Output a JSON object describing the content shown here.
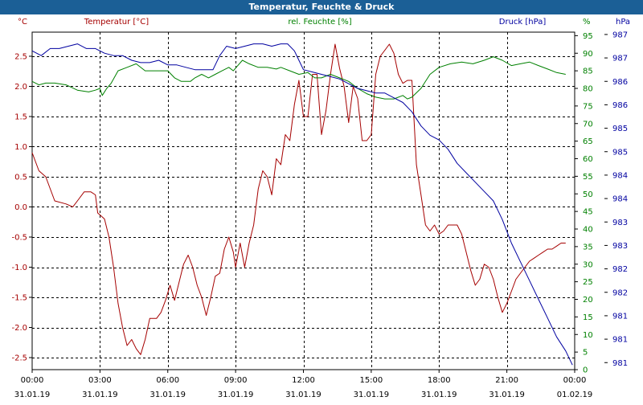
{
  "title": "Temperatur, Feuchte & Druck",
  "colors": {
    "titlebar": "#1b5f96",
    "temperature": "#a50000",
    "humidity": "#008000",
    "pressure": "#0000a0"
  },
  "chart_data": {
    "type": "line",
    "title": "Temperatur, Feuchte & Druck",
    "x": {
      "range_hours": [
        0,
        24
      ],
      "tick_hours": [
        0,
        3,
        6,
        9,
        12,
        15,
        18,
        21,
        24
      ],
      "tick_times": [
        "00:00",
        "03:00",
        "06:00",
        "09:00",
        "12:00",
        "15:00",
        "18:00",
        "21:00",
        "00:00"
      ],
      "tick_dates": [
        "31.01.19",
        "31.01.19",
        "31.01.19",
        "31.01.19",
        "31.01.19",
        "31.01.19",
        "31.01.19",
        "31.01.19",
        "01.02.19"
      ]
    },
    "axes": {
      "left": {
        "label": "Temperatur [°C]",
        "unit": "°C",
        "range": [
          -2.7,
          2.9
        ],
        "ticks": [
          -2.5,
          -2.0,
          -1.5,
          -1.0,
          -0.5,
          0.0,
          0.5,
          1.0,
          1.5,
          2.0,
          2.5
        ],
        "tick_labels": [
          "-2.5",
          "-2.0",
          "-1.5",
          "-1.0",
          "-0.5",
          "0.0",
          "0.5",
          "1.0",
          "1.5",
          "2.0",
          "2.5"
        ]
      },
      "right1": {
        "label": "rel. Feuchte [%]",
        "unit": "%",
        "range": [
          0,
          96
        ],
        "ticks": [
          0,
          5,
          10,
          15,
          20,
          25,
          30,
          35,
          40,
          45,
          50,
          55,
          60,
          65,
          70,
          75,
          80,
          85,
          90,
          95
        ],
        "tick_labels": [
          "0",
          "5",
          "10",
          "15",
          "20",
          "25",
          "30",
          "35",
          "40",
          "45",
          "50",
          "55",
          "60",
          "65",
          "70",
          "75",
          "80",
          "85",
          "90",
          "95"
        ]
      },
      "right2": {
        "label": "Druck [hPa]",
        "unit": "hPa",
        "range": [
          980.6,
          987.8
        ],
        "ticks": [
          980.75,
          981.25,
          981.75,
          982.25,
          982.75,
          983.25,
          983.75,
          984.25,
          984.75,
          985.25,
          985.75,
          986.25,
          986.75,
          987.25,
          987.75
        ],
        "tick_labels": [
          "981",
          "981",
          "981",
          "982",
          "982",
          "983",
          "983",
          "984",
          "984",
          "985",
          "985",
          "986",
          "986",
          "987",
          "987",
          "hPa"
        ]
      }
    },
    "grid": true,
    "series": [
      {
        "name": "Temperatur [°C]",
        "axis": "left",
        "points": [
          [
            0,
            0.9
          ],
          [
            0.3,
            0.6
          ],
          [
            0.6,
            0.5
          ],
          [
            0.8,
            0.3
          ],
          [
            1,
            0.1
          ],
          [
            1.5,
            0.05
          ],
          [
            1.8,
            0
          ],
          [
            2,
            0.1
          ],
          [
            2.3,
            0.25
          ],
          [
            2.6,
            0.25
          ],
          [
            2.8,
            0.2
          ],
          [
            2.9,
            -0.1
          ],
          [
            3.2,
            -0.2
          ],
          [
            3.4,
            -0.5
          ],
          [
            3.6,
            -1.0
          ],
          [
            3.8,
            -1.6
          ],
          [
            4,
            -2.0
          ],
          [
            4.2,
            -2.3
          ],
          [
            4.4,
            -2.2
          ],
          [
            4.6,
            -2.35
          ],
          [
            4.8,
            -2.45
          ],
          [
            5.0,
            -2.2
          ],
          [
            5.2,
            -1.85
          ],
          [
            5.5,
            -1.85
          ],
          [
            5.7,
            -1.75
          ],
          [
            5.9,
            -1.55
          ],
          [
            6.1,
            -1.3
          ],
          [
            6.3,
            -1.55
          ],
          [
            6.5,
            -1.25
          ],
          [
            6.7,
            -0.95
          ],
          [
            6.9,
            -0.8
          ],
          [
            7.1,
            -1.0
          ],
          [
            7.3,
            -1.3
          ],
          [
            7.5,
            -1.5
          ],
          [
            7.7,
            -1.8
          ],
          [
            7.9,
            -1.5
          ],
          [
            8.1,
            -1.15
          ],
          [
            8.3,
            -1.1
          ],
          [
            8.5,
            -0.7
          ],
          [
            8.7,
            -0.5
          ],
          [
            8.9,
            -0.75
          ],
          [
            9.0,
            -1.0
          ],
          [
            9.2,
            -0.6
          ],
          [
            9.4,
            -1.0
          ],
          [
            9.6,
            -0.6
          ],
          [
            9.8,
            -0.3
          ],
          [
            10.0,
            0.3
          ],
          [
            10.2,
            0.6
          ],
          [
            10.4,
            0.5
          ],
          [
            10.6,
            0.2
          ],
          [
            10.8,
            0.8
          ],
          [
            11.0,
            0.7
          ],
          [
            11.2,
            1.2
          ],
          [
            11.4,
            1.1
          ],
          [
            11.6,
            1.7
          ],
          [
            11.8,
            2.1
          ],
          [
            12.0,
            1.5
          ],
          [
            12.2,
            1.5
          ],
          [
            12.4,
            2.2
          ],
          [
            12.6,
            2.2
          ],
          [
            12.8,
            1.2
          ],
          [
            13.0,
            1.6
          ],
          [
            13.2,
            2.2
          ],
          [
            13.4,
            2.7
          ],
          [
            13.6,
            2.3
          ],
          [
            13.8,
            2.0
          ],
          [
            14.0,
            1.4
          ],
          [
            14.2,
            2.0
          ],
          [
            14.4,
            1.8
          ],
          [
            14.6,
            1.1
          ],
          [
            14.8,
            1.1
          ],
          [
            15.0,
            1.2
          ],
          [
            15.2,
            2.2
          ],
          [
            15.4,
            2.5
          ],
          [
            15.6,
            2.6
          ],
          [
            15.8,
            2.7
          ],
          [
            16.0,
            2.55
          ],
          [
            16.2,
            2.2
          ],
          [
            16.4,
            2.05
          ],
          [
            16.6,
            2.1
          ],
          [
            16.8,
            2.1
          ],
          [
            17.0,
            0.7
          ],
          [
            17.2,
            0.2
          ],
          [
            17.4,
            -0.3
          ],
          [
            17.6,
            -0.4
          ],
          [
            17.8,
            -0.3
          ],
          [
            18.0,
            -0.45
          ],
          [
            18.2,
            -0.4
          ],
          [
            18.4,
            -0.3
          ],
          [
            18.6,
            -0.3
          ],
          [
            18.8,
            -0.3
          ],
          [
            19.0,
            -0.45
          ],
          [
            19.2,
            -0.75
          ],
          [
            19.4,
            -1.05
          ],
          [
            19.6,
            -1.3
          ],
          [
            19.8,
            -1.2
          ],
          [
            20.0,
            -0.95
          ],
          [
            20.2,
            -1.0
          ],
          [
            20.4,
            -1.2
          ],
          [
            20.6,
            -1.5
          ],
          [
            20.8,
            -1.75
          ],
          [
            21.0,
            -1.6
          ],
          [
            21.2,
            -1.4
          ],
          [
            21.4,
            -1.2
          ],
          [
            21.6,
            -1.1
          ],
          [
            21.8,
            -1.0
          ],
          [
            22.0,
            -0.9
          ],
          [
            22.2,
            -0.85
          ],
          [
            22.4,
            -0.8
          ],
          [
            22.6,
            -0.75
          ],
          [
            22.8,
            -0.7
          ],
          [
            23.0,
            -0.7
          ],
          [
            23.2,
            -0.65
          ],
          [
            23.4,
            -0.6
          ],
          [
            23.6,
            -0.6
          ]
        ]
      },
      {
        "name": "rel. Feuchte [%]",
        "axis": "right1",
        "points": [
          [
            0,
            82
          ],
          [
            0.3,
            81
          ],
          [
            0.6,
            81.5
          ],
          [
            1,
            81.5
          ],
          [
            1.5,
            81
          ],
          [
            2,
            79.5
          ],
          [
            2.5,
            79
          ],
          [
            2.8,
            79.5
          ],
          [
            3,
            80
          ],
          [
            3.1,
            78
          ],
          [
            3.3,
            80
          ],
          [
            3.5,
            81.5
          ],
          [
            3.8,
            85
          ],
          [
            4.2,
            86
          ],
          [
            4.6,
            87
          ],
          [
            5,
            85
          ],
          [
            5.5,
            85
          ],
          [
            6,
            85
          ],
          [
            6.3,
            83
          ],
          [
            6.6,
            82
          ],
          [
            7,
            82
          ],
          [
            7.2,
            83
          ],
          [
            7.5,
            84
          ],
          [
            7.8,
            83
          ],
          [
            8.1,
            84
          ],
          [
            8.4,
            85
          ],
          [
            8.7,
            86
          ],
          [
            8.9,
            85
          ],
          [
            9.1,
            86.5
          ],
          [
            9.3,
            88
          ],
          [
            9.6,
            87
          ],
          [
            10,
            86
          ],
          [
            10.4,
            86
          ],
          [
            10.8,
            85.5
          ],
          [
            11,
            86
          ],
          [
            11.4,
            85
          ],
          [
            11.8,
            84
          ],
          [
            12.2,
            84.5
          ],
          [
            12.5,
            83
          ],
          [
            12.8,
            83
          ],
          [
            13.2,
            84
          ],
          [
            13.6,
            83
          ],
          [
            14,
            82
          ],
          [
            14.4,
            80
          ],
          [
            14.8,
            78.5
          ],
          [
            15.2,
            77.5
          ],
          [
            15.6,
            77
          ],
          [
            16,
            77
          ],
          [
            16.4,
            78
          ],
          [
            16.6,
            77
          ],
          [
            16.8,
            77.5
          ],
          [
            17.2,
            80
          ],
          [
            17.6,
            84
          ],
          [
            18,
            86
          ],
          [
            18.5,
            87
          ],
          [
            19,
            87.5
          ],
          [
            19.5,
            87
          ],
          [
            20,
            88
          ],
          [
            20.4,
            89
          ],
          [
            20.8,
            88
          ],
          [
            21.2,
            86.5
          ],
          [
            21.6,
            87
          ],
          [
            22,
            87.5
          ],
          [
            22.4,
            86.5
          ],
          [
            22.8,
            85.5
          ],
          [
            23.2,
            84.5
          ],
          [
            23.6,
            84
          ]
        ]
      },
      {
        "name": "Druck [hPa]",
        "axis": "right2",
        "points": [
          [
            0,
            987.4
          ],
          [
            0.4,
            987.3
          ],
          [
            0.8,
            987.45
          ],
          [
            1.2,
            987.45
          ],
          [
            1.6,
            987.5
          ],
          [
            2,
            987.55
          ],
          [
            2.4,
            987.45
          ],
          [
            2.8,
            987.45
          ],
          [
            3.2,
            987.35
          ],
          [
            3.6,
            987.3
          ],
          [
            4,
            987.3
          ],
          [
            4.4,
            987.2
          ],
          [
            4.8,
            987.15
          ],
          [
            5.2,
            987.15
          ],
          [
            5.6,
            987.2
          ],
          [
            6,
            987.1
          ],
          [
            6.4,
            987.1
          ],
          [
            6.8,
            987.05
          ],
          [
            7.2,
            987.0
          ],
          [
            7.6,
            987.0
          ],
          [
            8,
            987.0
          ],
          [
            8.3,
            987.3
          ],
          [
            8.6,
            987.5
          ],
          [
            9,
            987.45
          ],
          [
            9.4,
            987.5
          ],
          [
            9.8,
            987.55
          ],
          [
            10.2,
            987.55
          ],
          [
            10.6,
            987.5
          ],
          [
            11,
            987.55
          ],
          [
            11.3,
            987.55
          ],
          [
            11.6,
            987.4
          ],
          [
            11.8,
            987.2
          ],
          [
            12,
            987.0
          ],
          [
            12.4,
            986.95
          ],
          [
            12.8,
            986.9
          ],
          [
            13.2,
            986.85
          ],
          [
            13.6,
            986.8
          ],
          [
            14,
            986.7
          ],
          [
            14.4,
            986.6
          ],
          [
            14.8,
            986.55
          ],
          [
            15.2,
            986.5
          ],
          [
            15.6,
            986.5
          ],
          [
            16,
            986.4
          ],
          [
            16.4,
            986.3
          ],
          [
            16.8,
            986.1
          ],
          [
            17.2,
            985.8
          ],
          [
            17.6,
            985.6
          ],
          [
            18,
            985.5
          ],
          [
            18.4,
            985.3
          ],
          [
            18.8,
            985.0
          ],
          [
            19.2,
            984.8
          ],
          [
            19.6,
            984.6
          ],
          [
            20,
            984.4
          ],
          [
            20.4,
            984.2
          ],
          [
            20.8,
            983.8
          ],
          [
            21.2,
            983.3
          ],
          [
            21.6,
            982.9
          ],
          [
            22,
            982.5
          ],
          [
            22.4,
            982.1
          ],
          [
            22.8,
            981.7
          ],
          [
            23.2,
            981.3
          ],
          [
            23.6,
            981.0
          ],
          [
            23.9,
            980.7
          ]
        ]
      }
    ]
  }
}
